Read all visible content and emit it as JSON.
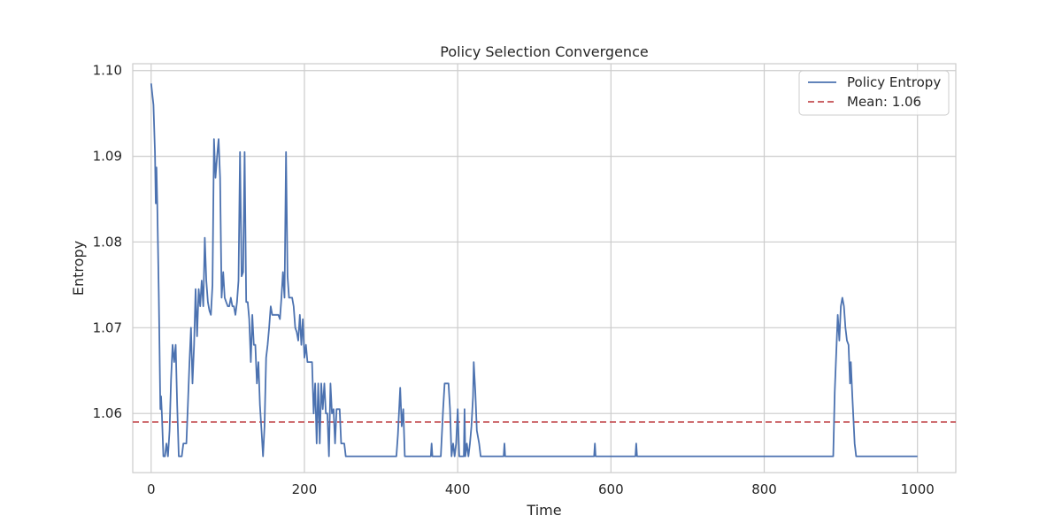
{
  "chart_data": {
    "type": "line",
    "title": "Policy Selection Convergence",
    "xlabel": "Time",
    "ylabel": "Entropy",
    "xlim": [
      -24,
      1050
    ],
    "ylim": [
      1.0531,
      1.1008
    ],
    "xticks": [
      0,
      200,
      400,
      600,
      800,
      1000
    ],
    "xtick_labels": [
      "0",
      "200",
      "400",
      "600",
      "800",
      "1000"
    ],
    "yticks": [
      1.06,
      1.07,
      1.08,
      1.09,
      1.1
    ],
    "ytick_labels": [
      "1.06",
      "1.07",
      "1.08",
      "1.09",
      "1.10"
    ],
    "grid": true,
    "legend_position": "top-right",
    "colors": {
      "series": "#4c72b0",
      "mean": "#c44e52",
      "grid": "#cccccc",
      "spine": "#cccccc"
    },
    "series": [
      {
        "name": "Policy Entropy",
        "style": "solid",
        "points": [
          [
            0,
            1.0985
          ],
          [
            3,
            1.096
          ],
          [
            5,
            1.0905
          ],
          [
            6,
            1.0845
          ],
          [
            7,
            1.0887
          ],
          [
            8,
            1.0845
          ],
          [
            10,
            1.074
          ],
          [
            12,
            1.0605
          ],
          [
            13,
            1.062
          ],
          [
            14,
            1.06
          ],
          [
            16,
            1.055
          ],
          [
            18,
            1.055
          ],
          [
            20,
            1.0565
          ],
          [
            22,
            1.055
          ],
          [
            24,
            1.058
          ],
          [
            26,
            1.064
          ],
          [
            28,
            1.068
          ],
          [
            30,
            1.066
          ],
          [
            32,
            1.068
          ],
          [
            34,
            1.061
          ],
          [
            36,
            1.055
          ],
          [
            40,
            1.055
          ],
          [
            42,
            1.0565
          ],
          [
            46,
            1.0565
          ],
          [
            48,
            1.061
          ],
          [
            50,
            1.066
          ],
          [
            52,
            1.07
          ],
          [
            54,
            1.0635
          ],
          [
            56,
            1.068
          ],
          [
            58,
            1.0745
          ],
          [
            60,
            1.069
          ],
          [
            62,
            1.0745
          ],
          [
            64,
            1.0725
          ],
          [
            66,
            1.0755
          ],
          [
            68,
            1.0725
          ],
          [
            70,
            1.0805
          ],
          [
            72,
            1.0755
          ],
          [
            74,
            1.073
          ],
          [
            76,
            1.072
          ],
          [
            78,
            1.0715
          ],
          [
            80,
            1.075
          ],
          [
            82,
            1.092
          ],
          [
            84,
            1.0875
          ],
          [
            86,
            1.09
          ],
          [
            88,
            1.092
          ],
          [
            90,
            1.0875
          ],
          [
            92,
            1.0735
          ],
          [
            94,
            1.0765
          ],
          [
            96,
            1.0735
          ],
          [
            98,
            1.073
          ],
          [
            100,
            1.0725
          ],
          [
            102,
            1.0725
          ],
          [
            104,
            1.0735
          ],
          [
            106,
            1.0725
          ],
          [
            108,
            1.0725
          ],
          [
            110,
            1.0715
          ],
          [
            112,
            1.073
          ],
          [
            114,
            1.0755
          ],
          [
            116,
            1.0905
          ],
          [
            118,
            1.076
          ],
          [
            120,
            1.0765
          ],
          [
            122,
            1.0905
          ],
          [
            124,
            1.073
          ],
          [
            126,
            1.073
          ],
          [
            128,
            1.071
          ],
          [
            130,
            1.066
          ],
          [
            132,
            1.0715
          ],
          [
            134,
            1.068
          ],
          [
            136,
            1.068
          ],
          [
            138,
            1.0635
          ],
          [
            140,
            1.066
          ],
          [
            142,
            1.061
          ],
          [
            144,
            1.058
          ],
          [
            146,
            1.055
          ],
          [
            148,
            1.0585
          ],
          [
            150,
            1.0665
          ],
          [
            152,
            1.068
          ],
          [
            154,
            1.07
          ],
          [
            156,
            1.0725
          ],
          [
            158,
            1.0715
          ],
          [
            160,
            1.0715
          ],
          [
            162,
            1.0715
          ],
          [
            164,
            1.0715
          ],
          [
            166,
            1.0715
          ],
          [
            168,
            1.071
          ],
          [
            170,
            1.0735
          ],
          [
            172,
            1.0765
          ],
          [
            174,
            1.0735
          ],
          [
            176,
            1.0905
          ],
          [
            178,
            1.076
          ],
          [
            180,
            1.0735
          ],
          [
            182,
            1.0735
          ],
          [
            184,
            1.0735
          ],
          [
            186,
            1.0725
          ],
          [
            188,
            1.07
          ],
          [
            190,
            1.0695
          ],
          [
            192,
            1.0685
          ],
          [
            194,
            1.0715
          ],
          [
            196,
            1.068
          ],
          [
            198,
            1.071
          ],
          [
            200,
            1.0665
          ],
          [
            202,
            1.068
          ],
          [
            204,
            1.066
          ],
          [
            206,
            1.066
          ],
          [
            208,
            1.066
          ],
          [
            210,
            1.066
          ],
          [
            212,
            1.06
          ],
          [
            214,
            1.0635
          ],
          [
            216,
            1.0565
          ],
          [
            218,
            1.0635
          ],
          [
            220,
            1.0565
          ],
          [
            222,
            1.0635
          ],
          [
            224,
            1.0605
          ],
          [
            226,
            1.0635
          ],
          [
            228,
            1.06
          ],
          [
            230,
            1.06
          ],
          [
            232,
            1.055
          ],
          [
            234,
            1.0635
          ],
          [
            236,
            1.06
          ],
          [
            238,
            1.0605
          ],
          [
            240,
            1.0565
          ],
          [
            242,
            1.0605
          ],
          [
            244,
            1.0605
          ],
          [
            246,
            1.0605
          ],
          [
            248,
            1.0565
          ],
          [
            252,
            1.0565
          ],
          [
            254,
            1.055
          ],
          [
            320,
            1.055
          ],
          [
            322,
            1.0575
          ],
          [
            325,
            1.063
          ],
          [
            327,
            1.0585
          ],
          [
            329,
            1.0605
          ],
          [
            331,
            1.055
          ],
          [
            365,
            1.055
          ],
          [
            366,
            1.0565
          ],
          [
            367,
            1.055
          ],
          [
            378,
            1.055
          ],
          [
            381,
            1.0605
          ],
          [
            383,
            1.0635
          ],
          [
            388,
            1.0635
          ],
          [
            390,
            1.0605
          ],
          [
            392,
            1.055
          ],
          [
            394,
            1.0565
          ],
          [
            396,
            1.055
          ],
          [
            398,
            1.0565
          ],
          [
            400,
            1.0605
          ],
          [
            402,
            1.055
          ],
          [
            408,
            1.055
          ],
          [
            409,
            1.0605
          ],
          [
            410,
            1.055
          ],
          [
            412,
            1.0565
          ],
          [
            414,
            1.055
          ],
          [
            416,
            1.0565
          ],
          [
            418,
            1.0585
          ],
          [
            420,
            1.062
          ],
          [
            421,
            1.066
          ],
          [
            423,
            1.0625
          ],
          [
            425,
            1.058
          ],
          [
            428,
            1.0565
          ],
          [
            430,
            1.055
          ],
          [
            460,
            1.055
          ],
          [
            461,
            1.0565
          ],
          [
            462,
            1.055
          ],
          [
            578,
            1.055
          ],
          [
            579,
            1.0565
          ],
          [
            580,
            1.055
          ],
          [
            632,
            1.055
          ],
          [
            633,
            1.0565
          ],
          [
            634,
            1.055
          ],
          [
            890,
            1.055
          ],
          [
            892,
            1.0625
          ],
          [
            894,
            1.067
          ],
          [
            896,
            1.0715
          ],
          [
            898,
            1.0685
          ],
          [
            900,
            1.0725
          ],
          [
            902,
            1.0735
          ],
          [
            904,
            1.0725
          ],
          [
            906,
            1.07
          ],
          [
            908,
            1.0685
          ],
          [
            910,
            1.068
          ],
          [
            912,
            1.0635
          ],
          [
            913,
            1.066
          ],
          [
            915,
            1.062
          ],
          [
            918,
            1.0565
          ],
          [
            920,
            1.055
          ],
          [
            1000,
            1.055
          ]
        ]
      },
      {
        "name": "Mean: 1.06",
        "style": "dashed",
        "constant": 1.059
      }
    ]
  }
}
